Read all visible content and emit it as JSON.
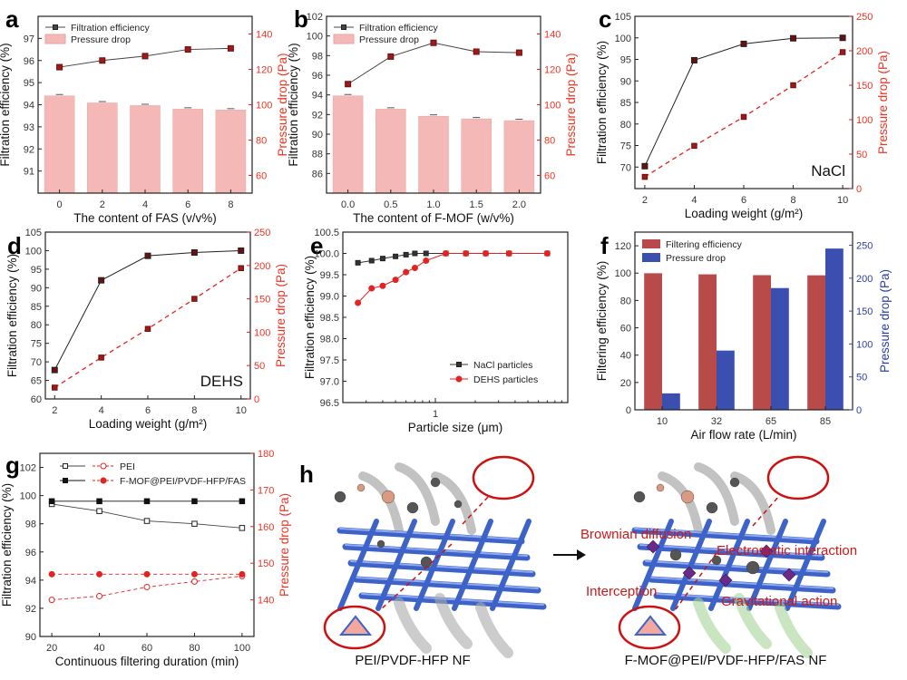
{
  "panel_labels": [
    "a",
    "b",
    "c",
    "d",
    "e",
    "f",
    "g",
    "h"
  ],
  "colors": {
    "red": "#e32222",
    "bar_pink": "#f4b9b7",
    "bar_maroon": "#b84a4a",
    "bar_blue": "#3a4fb0",
    "fiber": "#3d63c9"
  },
  "chart_data": [
    {
      "panel": "a",
      "type": "bar+line",
      "xlabel": "The content of FAS (v/v%)",
      "ylabel": "Filtration efficiency (%)",
      "y2label": "Pressure drop (Pa)",
      "categories": [
        "0",
        "2",
        "4",
        "6",
        "8"
      ],
      "ylim": [
        90,
        98
      ],
      "yticks": [
        91,
        92,
        93,
        94,
        95,
        96,
        97
      ],
      "y2lim": [
        50,
        150
      ],
      "y2ticks": [
        60,
        80,
        100,
        120,
        140
      ],
      "legend": [
        "Filtration efficiency",
        "Pressure drop"
      ],
      "efficiency": [
        95.7,
        96.0,
        96.2,
        96.5,
        96.55
      ],
      "pressure_drop": [
        105,
        101,
        99.5,
        97.5,
        97
      ]
    },
    {
      "panel": "b",
      "type": "bar+line",
      "xlabel": "The content of F-MOF (w/v%)",
      "ylabel": "Filtration efficiency (%)",
      "y2label": "Pressure drop (Pa)",
      "categories": [
        "0.0",
        "0.5",
        "1.0",
        "1.5",
        "2.0"
      ],
      "ylim": [
        84,
        102
      ],
      "yticks": [
        86,
        88,
        90,
        92,
        94,
        96,
        98,
        100,
        102
      ],
      "y2lim": [
        50,
        150
      ],
      "y2ticks": [
        60,
        80,
        100,
        120,
        140
      ],
      "legend": [
        "Filtration efficiency",
        "Pressure drop"
      ],
      "efficiency": [
        95.1,
        97.9,
        99.3,
        98.4,
        98.3
      ],
      "pressure_drop": [
        105,
        97.5,
        93.5,
        92,
        91
      ]
    },
    {
      "panel": "c",
      "type": "line",
      "annotation": "NaCl",
      "xlabel": "Loading weight (g/m²)",
      "ylabel": "Filtration efficiency (%)",
      "y2label": "Pressure drop (Pa)",
      "x": [
        2,
        4,
        6,
        8,
        10
      ],
      "xlim": [
        1.6,
        10.4
      ],
      "xticks": [
        2,
        4,
        6,
        8,
        10
      ],
      "ylim": [
        65,
        105
      ],
      "yticks": [
        70,
        75,
        80,
        85,
        90,
        95,
        100,
        105
      ],
      "y2lim": [
        0,
        250
      ],
      "y2ticks": [
        0,
        50,
        100,
        150,
        200,
        250
      ],
      "efficiency": [
        70.2,
        94.8,
        98.6,
        99.9,
        100
      ],
      "pressure_drop": [
        17,
        62,
        104,
        150,
        198
      ]
    },
    {
      "panel": "d",
      "type": "line",
      "annotation": "DEHS",
      "xlabel": "Loading weight (g/m²)",
      "ylabel": "Filtration efficiency (%)",
      "y2label": "Pressure drop (Pa)",
      "x": [
        2,
        4,
        6,
        8,
        10
      ],
      "xlim": [
        1.6,
        10.4
      ],
      "xticks": [
        2,
        4,
        6,
        8,
        10
      ],
      "ylim": [
        60,
        105
      ],
      "yticks": [
        60,
        65,
        70,
        75,
        80,
        85,
        90,
        95,
        100,
        105
      ],
      "y2lim": [
        0,
        250
      ],
      "y2ticks": [
        0,
        50,
        100,
        150,
        200,
        250
      ],
      "efficiency": [
        67.8,
        92.0,
        98.6,
        99.5,
        100
      ],
      "pressure_drop": [
        17,
        62,
        105,
        150,
        196
      ]
    },
    {
      "panel": "e",
      "type": "line",
      "xlabel": "Particle size (μm)",
      "ylabel": "Filtration efficiency (%)",
      "xscale": "log",
      "xlim": [
        0.2,
        10
      ],
      "xticks": [
        1
      ],
      "ylim": [
        96.5,
        100.5
      ],
      "yticks": [
        96.5,
        97.0,
        97.5,
        98.0,
        98.5,
        99.0,
        99.5,
        100.0,
        100.5
      ],
      "series": [
        {
          "name": "NaCl particles",
          "x": [
            0.26,
            0.33,
            0.4,
            0.5,
            0.6,
            0.7,
            0.85,
            1.2,
            1.7,
            2.4,
            3.6,
            7.0
          ],
          "y": [
            99.78,
            99.83,
            99.88,
            99.93,
            99.97,
            100,
            100,
            100,
            100,
            100,
            100,
            100
          ]
        },
        {
          "name": "DEHS particles",
          "x": [
            0.26,
            0.33,
            0.4,
            0.5,
            0.6,
            0.7,
            0.85,
            1.2,
            1.7,
            2.4,
            3.6,
            7.0
          ],
          "y": [
            98.84,
            99.18,
            99.24,
            99.38,
            99.56,
            99.66,
            99.83,
            100,
            100,
            100,
            100,
            100
          ]
        }
      ]
    },
    {
      "panel": "f",
      "type": "bar",
      "xlabel": "Air flow rate (L/min)",
      "ylabel": "Filtering efficiency (%)",
      "y2label": "Pressure drop (Pa)",
      "categories": [
        "10",
        "32",
        "65",
        "85"
      ],
      "ylim": [
        0,
        130
      ],
      "yticks": [
        0,
        20,
        40,
        60,
        80,
        100,
        120
      ],
      "y2lim": [
        0,
        270
      ],
      "y2ticks": [
        0,
        50,
        100,
        150,
        200,
        250
      ],
      "legend": [
        "Filtering efficiency",
        "Pressure drop"
      ],
      "efficiency": [
        99.9,
        99.1,
        98.5,
        98.4
      ],
      "pressure_drop": [
        25,
        90,
        185,
        245
      ]
    },
    {
      "panel": "g",
      "type": "line",
      "xlabel": "Continuous filtering duration (min)",
      "ylabel": "Filtration efficiency (%)",
      "y2label": "Pressure drop (Pa)",
      "x": [
        20,
        40,
        60,
        80,
        100
      ],
      "xlim": [
        15,
        105
      ],
      "xticks": [
        20,
        40,
        60,
        80,
        100
      ],
      "ylim": [
        90,
        103
      ],
      "yticks": [
        90,
        92,
        94,
        96,
        98,
        100,
        102
      ],
      "y2lim": [
        130,
        180
      ],
      "y2ticks": [
        140,
        150,
        160,
        170,
        180
      ],
      "legend": [
        "PEI",
        "F-MOF@PEI/PVDF-HFP/FAS"
      ],
      "eff_pei": [
        99.4,
        98.9,
        98.2,
        98.0,
        97.7
      ],
      "eff_fmof": [
        99.6,
        99.6,
        99.6,
        99.6,
        99.6
      ],
      "pd_pei": [
        140,
        141,
        143.5,
        145,
        146.5
      ],
      "pd_fmof": [
        147,
        147,
        147,
        147,
        147
      ]
    }
  ],
  "schematic": {
    "left_caption": "PEI/PVDF-HFP NF",
    "right_caption": "F-MOF@PEI/PVDF-HFP/FAS  NF",
    "mechanisms": [
      "Brownian diffusion",
      "Electrostatic interaction",
      "Interception",
      "Gravitational action"
    ]
  }
}
